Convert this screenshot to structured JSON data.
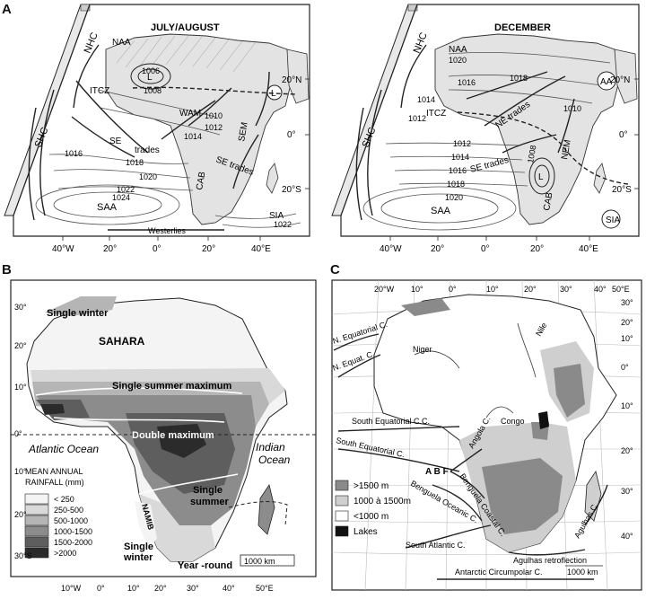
{
  "panel_labels": {
    "a": "A",
    "b": "B",
    "c": "C"
  },
  "panel_a": {
    "left_title": "JULY/AUGUST",
    "right_title": "DECEMBER",
    "left": {
      "labels": {
        "naa": "NAA",
        "nhc": "NHC",
        "shc": "SHC",
        "itcz": "ITCZ",
        "wam": "WAM",
        "sem": "SEM",
        "se_trades_1": "SE",
        "se_trades_2": "trades",
        "se_trades_3": "SE trades",
        "cab": "CAB",
        "saa": "SAA",
        "sia": "SIA",
        "westerlies": "Westerlies",
        "low": "L",
        "low2": "L"
      },
      "isobars": {
        "p1006": "1006",
        "p1008": "1008",
        "p1010": "1010",
        "p1012": "1012",
        "p1014": "1014",
        "p1016": "1016",
        "p1018": "1018",
        "p1020": "1020",
        "p1022": "1022",
        "p1024": "1024",
        "p1022b": "1022"
      },
      "lat": {
        "n20": "20°N",
        "zero": "0°",
        "s20": "20°S"
      },
      "lon": [
        "40°W",
        "20°",
        "0°",
        "20°",
        "40°E"
      ]
    },
    "right": {
      "labels": {
        "naa": "NAA",
        "nhc": "NHC",
        "shc": "SHC",
        "itcz": "ITCZ",
        "ne_trades": "NE trades",
        "se_trades": "SE trades",
        "nem": "NEM",
        "cab": "CAB",
        "saa": "SAA",
        "sia": "SIA",
        "aa": "AA",
        "low": "L"
      },
      "isobars": {
        "p1020": "1020",
        "p1016": "1016",
        "p1018": "1018",
        "p1014": "1014",
        "p1012": "1012",
        "p1010": "1010",
        "p1012b": "1012",
        "p1014b": "1014",
        "p1016b": "1016",
        "p1018b": "1018",
        "p1020b": "1020",
        "p1008": "1008"
      },
      "lat": {
        "n20": "20°N",
        "zero": "0°",
        "s20": "20°S"
      },
      "lon": [
        "40°W",
        "20°",
        "0°",
        "20°",
        "40°E"
      ]
    }
  },
  "panel_b": {
    "lat_labels": [
      "30°",
      "20°",
      "10°",
      "0°",
      "10°",
      "20°",
      "30°S"
    ],
    "lon_labels": [
      "10°W",
      "0°",
      "10°",
      "20°",
      "30°",
      "40°",
      "50°E"
    ],
    "regions": {
      "single_winter_n": "Single winter",
      "sahara": "SAHARA",
      "single_summer_max": "Single summer maximum",
      "double_max": "Double maximum",
      "atlantic": "Atlantic Ocean",
      "indian_1": "Indian",
      "indian_2": "Ocean",
      "single_summer_1": "Single",
      "single_summer_2": "summer",
      "namib": "NAMIB",
      "single_winter_s_1": "Single",
      "single_winter_s_2": "winter",
      "year_round": "Year -round",
      "scale": "1000 km"
    },
    "legend": {
      "title_1": "MEAN ANNUAL",
      "title_2": "RAINFALL (mm)",
      "items": [
        {
          "label": "< 250",
          "color": "#f4f4f4"
        },
        {
          "label": "250-500",
          "color": "#d9d9d9"
        },
        {
          "label": "500-1000",
          "color": "#b5b5b5"
        },
        {
          "label": "1000-1500",
          "color": "#8c8c8c"
        },
        {
          "label": "1500-2000",
          "color": "#5e5e5e"
        },
        {
          "label": ">2000",
          "color": "#2b2b2b"
        }
      ]
    }
  },
  "panel_c": {
    "lon_labels": [
      "20°W",
      "10°",
      "0°",
      "10°",
      "20°",
      "30°",
      "40°",
      "50°E"
    ],
    "lat_labels": [
      "30°",
      "20°",
      "10°",
      "0°",
      "10°",
      "20°",
      "30°",
      "40°"
    ],
    "features": {
      "niger": "Niger",
      "nile": "Nile",
      "congo": "Congo",
      "n_eq_c_1": "N. Equatorial C.",
      "n_eq_c_2": "N. Equat. C.",
      "s_eq_cc": "South Equatorial C.C.",
      "s_eq_c": "South Equatorial C.",
      "angola_c": "Angola C.",
      "abf": "A B F",
      "benguela_oc": "Benguela Oceanic C.",
      "benguela_coastal": "Benguela Coastal C.",
      "s_atl_c": "South Atlantic C.",
      "agulhas_c": "Agulhas C.",
      "agulhas_retro": "Agulhas retroflection",
      "acc": "Antarctic Circumpolar C.",
      "scale": "1000 km"
    },
    "legend": [
      {
        "label": ">1500 m",
        "color": "#8a8a8a"
      },
      {
        "label": "1000 à 1500m",
        "color": "#cfcfcf"
      },
      {
        "label": "<1000 m",
        "color": "#ffffff"
      },
      {
        "label": "Lakes",
        "color": "#111111"
      }
    ]
  }
}
